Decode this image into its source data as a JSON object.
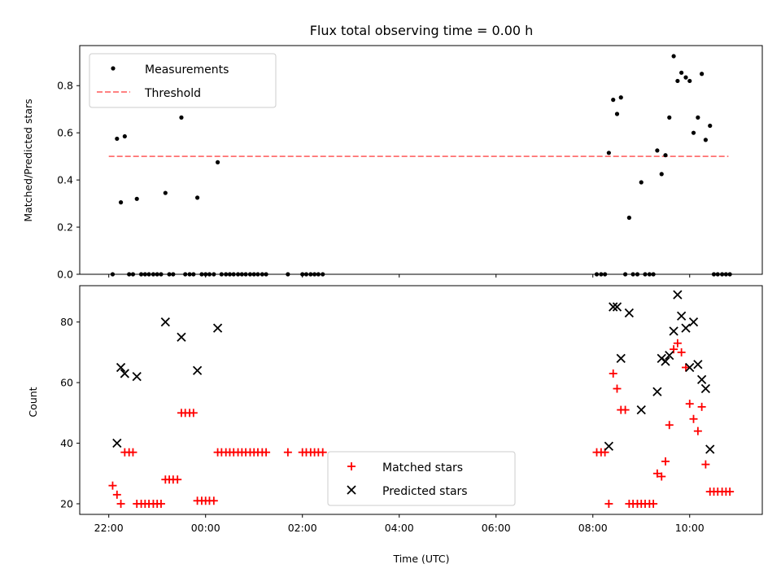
{
  "chart_data": [
    {
      "type": "scatter",
      "title": "Flux total observing time = 0.00 h",
      "xlabel": "",
      "ylabel": "Matched/Predicted stars",
      "xlim": [
        -0.6,
        13.5
      ],
      "ylim": [
        0,
        0.97
      ],
      "yticks": [
        0.0,
        0.2,
        0.4,
        0.6,
        0.8
      ],
      "ytick_labels": [
        "0.0",
        "0.2",
        "0.4",
        "0.6",
        "0.8"
      ],
      "threshold": {
        "x": [
          0,
          12.8
        ],
        "y": 0.5
      },
      "legend": {
        "placement": "upper-left",
        "entries": [
          "Measurements",
          "Threshold"
        ]
      },
      "series": [
        {
          "name": "Measurements",
          "points": [
            [
              0.08,
              0
            ],
            [
              0.17,
              0.575
            ],
            [
              0.25,
              0.305
            ],
            [
              0.33,
              0.585
            ],
            [
              0.42,
              0
            ],
            [
              0.5,
              0
            ],
            [
              0.58,
              0.32
            ],
            [
              0.67,
              0
            ],
            [
              0.75,
              0
            ],
            [
              0.83,
              0
            ],
            [
              0.92,
              0
            ],
            [
              1.0,
              0
            ],
            [
              1.08,
              0
            ],
            [
              1.17,
              0.345
            ],
            [
              1.25,
              0
            ],
            [
              1.33,
              0
            ],
            [
              1.5,
              0.665
            ],
            [
              1.58,
              0
            ],
            [
              1.67,
              0
            ],
            [
              1.75,
              0
            ],
            [
              1.83,
              0.325
            ],
            [
              1.92,
              0
            ],
            [
              2.0,
              0
            ],
            [
              2.08,
              0
            ],
            [
              2.17,
              0
            ],
            [
              2.25,
              0.475
            ],
            [
              2.33,
              0
            ],
            [
              2.42,
              0
            ],
            [
              2.5,
              0
            ],
            [
              2.58,
              0
            ],
            [
              2.67,
              0
            ],
            [
              2.75,
              0
            ],
            [
              2.83,
              0
            ],
            [
              2.92,
              0
            ],
            [
              3.0,
              0
            ],
            [
              3.08,
              0
            ],
            [
              3.17,
              0
            ],
            [
              3.25,
              0
            ],
            [
              3.7,
              0
            ],
            [
              4.0,
              0
            ],
            [
              4.08,
              0
            ],
            [
              4.17,
              0
            ],
            [
              4.25,
              0
            ],
            [
              4.33,
              0
            ],
            [
              4.42,
              0
            ],
            [
              10.08,
              0
            ],
            [
              10.17,
              0
            ],
            [
              10.25,
              0
            ],
            [
              10.33,
              0.515
            ],
            [
              10.42,
              0.74
            ],
            [
              10.5,
              0.68
            ],
            [
              10.58,
              0.75
            ],
            [
              10.67,
              0
            ],
            [
              10.75,
              0.24
            ],
            [
              10.83,
              0
            ],
            [
              10.92,
              0
            ],
            [
              11.0,
              0.39
            ],
            [
              11.08,
              0
            ],
            [
              11.17,
              0
            ],
            [
              11.25,
              0
            ],
            [
              11.33,
              0.525
            ],
            [
              11.42,
              0.425
            ],
            [
              11.5,
              0.505
            ],
            [
              11.58,
              0.665
            ],
            [
              11.67,
              0.925
            ],
            [
              11.75,
              0.82
            ],
            [
              11.83,
              0.855
            ],
            [
              11.92,
              0.835
            ],
            [
              12.0,
              0.82
            ],
            [
              12.08,
              0.6
            ],
            [
              12.17,
              0.665
            ],
            [
              12.25,
              0.85
            ],
            [
              12.33,
              0.57
            ],
            [
              12.42,
              0.63
            ],
            [
              12.5,
              0
            ],
            [
              12.58,
              0
            ],
            [
              12.67,
              0
            ],
            [
              12.75,
              0
            ],
            [
              12.83,
              0
            ]
          ]
        }
      ]
    },
    {
      "type": "scatter",
      "title": "",
      "xlabel": "Time (UTC)",
      "ylabel": "Count",
      "xlim": [
        -0.6,
        13.5
      ],
      "ylim": [
        16.5,
        92
      ],
      "yticks": [
        20,
        40,
        60,
        80
      ],
      "ytick_labels": [
        "20",
        "40",
        "60",
        "80"
      ],
      "xticks": [
        0,
        2,
        4,
        6,
        8,
        10,
        12
      ],
      "xtick_labels": [
        "22:00",
        "00:00",
        "02:00",
        "04:00",
        "06:00",
        "08:00",
        "10:00"
      ],
      "legend": {
        "placement": "lower-center",
        "entries": [
          "Matched stars",
          "Predicted stars"
        ]
      },
      "series": [
        {
          "name": "Matched stars",
          "color": "#ff0000",
          "points": [
            [
              0.08,
              26
            ],
            [
              0.17,
              23
            ],
            [
              0.25,
              20
            ],
            [
              0.33,
              37
            ],
            [
              0.42,
              37
            ],
            [
              0.5,
              37
            ],
            [
              0.58,
              20
            ],
            [
              0.67,
              20
            ],
            [
              0.75,
              20
            ],
            [
              0.83,
              20
            ],
            [
              0.92,
              20
            ],
            [
              1.0,
              20
            ],
            [
              1.08,
              20
            ],
            [
              1.17,
              28
            ],
            [
              1.25,
              28
            ],
            [
              1.33,
              28
            ],
            [
              1.42,
              28
            ],
            [
              1.5,
              50
            ],
            [
              1.58,
              50
            ],
            [
              1.67,
              50
            ],
            [
              1.75,
              50
            ],
            [
              1.83,
              21
            ],
            [
              1.92,
              21
            ],
            [
              2.0,
              21
            ],
            [
              2.08,
              21
            ],
            [
              2.17,
              21
            ],
            [
              2.25,
              37
            ],
            [
              2.33,
              37
            ],
            [
              2.42,
              37
            ],
            [
              2.5,
              37
            ],
            [
              2.58,
              37
            ],
            [
              2.67,
              37
            ],
            [
              2.75,
              37
            ],
            [
              2.83,
              37
            ],
            [
              2.92,
              37
            ],
            [
              3.0,
              37
            ],
            [
              3.08,
              37
            ],
            [
              3.17,
              37
            ],
            [
              3.25,
              37
            ],
            [
              3.7,
              37
            ],
            [
              4.0,
              37
            ],
            [
              4.08,
              37
            ],
            [
              4.17,
              37
            ],
            [
              4.25,
              37
            ],
            [
              4.33,
              37
            ],
            [
              4.42,
              37
            ],
            [
              10.08,
              37
            ],
            [
              10.17,
              37
            ],
            [
              10.25,
              37
            ],
            [
              10.33,
              20
            ],
            [
              10.42,
              63
            ],
            [
              10.5,
              58
            ],
            [
              10.58,
              51
            ],
            [
              10.67,
              51
            ],
            [
              10.75,
              20
            ],
            [
              10.83,
              20
            ],
            [
              10.92,
              20
            ],
            [
              11.0,
              20
            ],
            [
              11.08,
              20
            ],
            [
              11.17,
              20
            ],
            [
              11.25,
              20
            ],
            [
              11.33,
              30
            ],
            [
              11.42,
              29
            ],
            [
              11.5,
              34
            ],
            [
              11.58,
              46
            ],
            [
              11.67,
              71
            ],
            [
              11.75,
              73
            ],
            [
              11.83,
              70
            ],
            [
              11.92,
              65
            ],
            [
              12.0,
              53
            ],
            [
              12.08,
              48
            ],
            [
              12.17,
              44
            ],
            [
              12.25,
              52
            ],
            [
              12.33,
              33
            ],
            [
              12.42,
              24
            ],
            [
              12.5,
              24
            ],
            [
              12.58,
              24
            ],
            [
              12.67,
              24
            ],
            [
              12.75,
              24
            ],
            [
              12.83,
              24
            ]
          ]
        },
        {
          "name": "Predicted stars",
          "color": "#000000",
          "points": [
            [
              0.17,
              40
            ],
            [
              0.25,
              65
            ],
            [
              0.33,
              63
            ],
            [
              0.58,
              62
            ],
            [
              1.17,
              80
            ],
            [
              1.5,
              75
            ],
            [
              1.83,
              64
            ],
            [
              2.25,
              78
            ],
            [
              10.33,
              39
            ],
            [
              10.42,
              85
            ],
            [
              10.5,
              85
            ],
            [
              10.58,
              68
            ],
            [
              10.75,
              83
            ],
            [
              11.0,
              51
            ],
            [
              11.33,
              57
            ],
            [
              11.42,
              68
            ],
            [
              11.5,
              67
            ],
            [
              11.58,
              69
            ],
            [
              11.67,
              77
            ],
            [
              11.75,
              89
            ],
            [
              11.83,
              82
            ],
            [
              11.92,
              78
            ],
            [
              12.0,
              65
            ],
            [
              12.08,
              80
            ],
            [
              12.17,
              66
            ],
            [
              12.25,
              61
            ],
            [
              12.33,
              58
            ],
            [
              12.42,
              38
            ]
          ]
        }
      ]
    }
  ]
}
